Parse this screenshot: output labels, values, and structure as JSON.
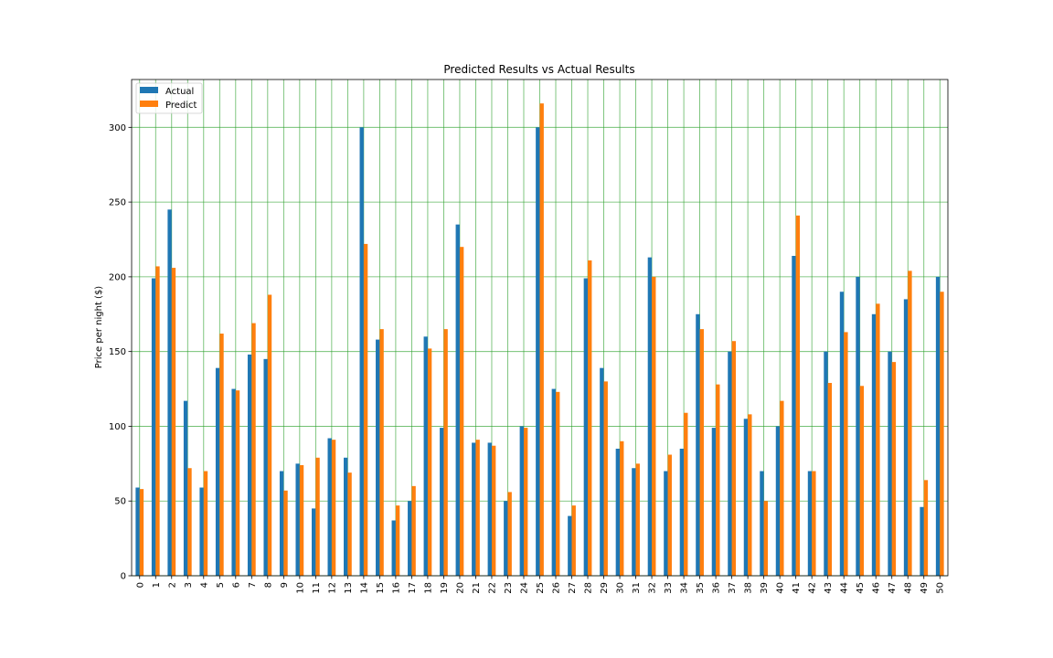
{
  "chart_data": {
    "type": "bar",
    "title": "Predicted Results vs Actual Results",
    "xlabel": "",
    "ylabel": "Price per night ($)",
    "ylim": [
      0,
      332
    ],
    "yticks": [
      0,
      50,
      100,
      150,
      200,
      250,
      300
    ],
    "grid": true,
    "grid_color": "#2ca02c",
    "legend_position": "top-left",
    "categories": [
      "0",
      "1",
      "2",
      "3",
      "4",
      "5",
      "6",
      "7",
      "8",
      "9",
      "10",
      "11",
      "12",
      "13",
      "14",
      "15",
      "16",
      "17",
      "18",
      "19",
      "20",
      "21",
      "22",
      "23",
      "24",
      "25",
      "26",
      "27",
      "28",
      "29",
      "30",
      "31",
      "32",
      "33",
      "34",
      "35",
      "36",
      "37",
      "38",
      "39",
      "40",
      "41",
      "42",
      "43",
      "44",
      "45",
      "46",
      "47",
      "48",
      "49",
      "50"
    ],
    "series": [
      {
        "name": "Actual",
        "color": "#1f77b4",
        "values": [
          59,
          199,
          245,
          117,
          59,
          139,
          125,
          148,
          145,
          70,
          75,
          45,
          92,
          79,
          300,
          158,
          37,
          50,
          160,
          99,
          235,
          89,
          89,
          50,
          100,
          300,
          125,
          40,
          199,
          139,
          85,
          72,
          213,
          70,
          85,
          175,
          99,
          150,
          105,
          70,
          100,
          214,
          70,
          150,
          190,
          200,
          175,
          150,
          185,
          46,
          200
        ]
      },
      {
        "name": "Predict",
        "color": "#ff7f0e",
        "values": [
          58,
          207,
          206,
          72,
          70,
          162,
          124,
          169,
          188,
          57,
          74,
          79,
          91,
          69,
          222,
          165,
          47,
          60,
          152,
          165,
          220,
          91,
          87,
          56,
          99,
          316,
          123,
          47,
          211,
          130,
          90,
          75,
          200,
          81,
          109,
          165,
          128,
          157,
          108,
          50,
          117,
          241,
          70,
          129,
          163,
          127,
          182,
          143,
          204,
          64,
          190
        ]
      }
    ]
  }
}
